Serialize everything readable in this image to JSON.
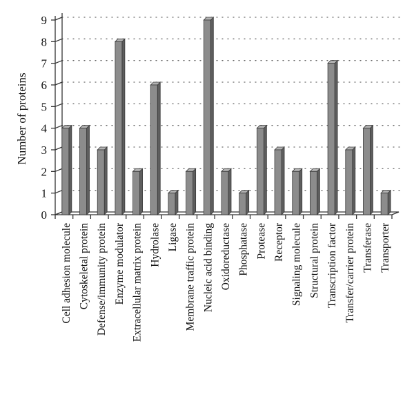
{
  "chart_data": {
    "type": "bar",
    "ylabel": "Number of proteins",
    "ylim": [
      0,
      9
    ],
    "yticks": [
      0,
      1,
      2,
      3,
      4,
      5,
      6,
      7,
      8,
      9
    ],
    "grid": true,
    "categories": [
      "Cell adhesion molecule",
      "Cytoskeletal protein",
      "Defense/immunity protein",
      "Enzyme modulator",
      "Extracellular matrix protein",
      "Hydrolase",
      "Ligase",
      "Membrane traffic protein",
      "Nucleic acid binding",
      "Oxidoreductase",
      "Phosphatase",
      "Protease",
      "Receptor",
      "Signaling molecule",
      "Structural protein",
      "Transcription factor",
      "Transfer/carrier protein",
      "Transferase",
      "Transporter"
    ],
    "values": [
      4,
      4,
      3,
      8,
      2,
      6,
      1,
      2,
      9,
      2,
      1,
      4,
      3,
      2,
      2,
      7,
      3,
      4,
      1
    ],
    "bar_color": "#8c8c8c"
  }
}
